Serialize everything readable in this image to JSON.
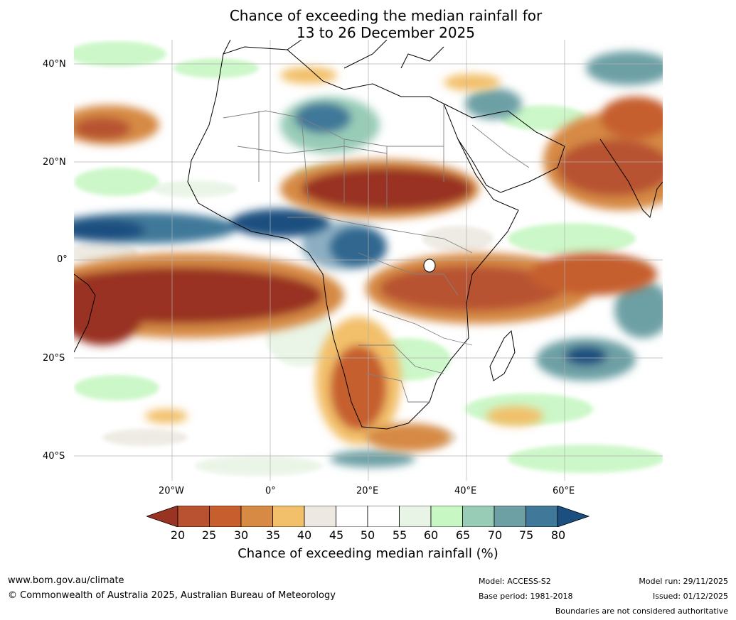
{
  "title": {
    "line1": "Chance of exceeding the median rainfall for",
    "line2": "13 to 26 December 2025"
  },
  "map": {
    "lat_labels": [
      "40°N",
      "20°N",
      "0°",
      "20°S",
      "40°S"
    ],
    "lon_labels": [
      "20°W",
      "0°",
      "20°E",
      "40°E",
      "60°E"
    ]
  },
  "colorbar": {
    "label": "Chance of exceeding median rainfall (%)",
    "ticks": [
      "20",
      "25",
      "30",
      "35",
      "40",
      "45",
      "50",
      "55",
      "60",
      "65",
      "70",
      "75",
      "80"
    ],
    "colors": [
      "#b85230",
      "#c65e2d",
      "#d68a44",
      "#f2c06a",
      "#ede9e2",
      "#ffffff",
      "#ffffff",
      "#e8f4e5",
      "#c7f7c3",
      "#98ccb7",
      "#6da0a5",
      "#3f7899"
    ],
    "low_extension_color": "#993322",
    "high_extension_color": "#1a4f80"
  },
  "footer": {
    "website": "www.bom.gov.au/climate",
    "copyright": "© Commonwealth of Australia 2025, Australian Bureau of Meteorology",
    "model": "Model: ACCESS-S2",
    "base_period": "Base period: 1981-2018",
    "model_run": "Model run: 29/11/2025",
    "issued": "Issued: 01/12/2025",
    "disclaimer": "Boundaries are not considered authoritative"
  }
}
